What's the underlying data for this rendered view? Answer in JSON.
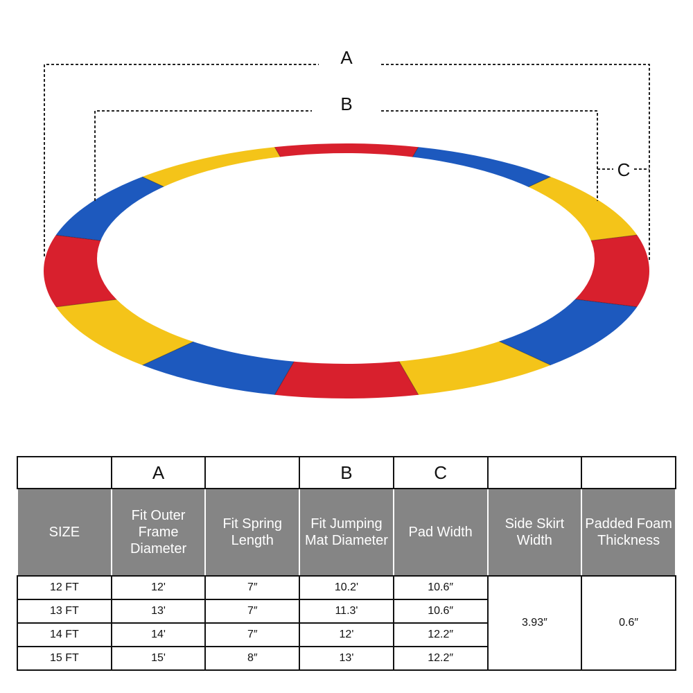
{
  "diagram": {
    "labels": [
      "A",
      "B",
      "C"
    ]
  },
  "table": {
    "letters": [
      "A",
      "B",
      "C"
    ],
    "headers": [
      "SIZE",
      "Fit Outer Frame Diameter",
      "Fit Spring Length",
      "Fit Jumping Mat Diameter",
      "Pad Width",
      "Side Skirt Width",
      "Padded Foam Thickness"
    ],
    "rows": [
      [
        "12 FT",
        "12'",
        "7″",
        "10.2'",
        "10.6″"
      ],
      [
        "13 FT",
        "13'",
        "7″",
        "11.3'",
        "10.6″"
      ],
      [
        "14 FT",
        "14'",
        "7″",
        "12'",
        "12.2″"
      ],
      [
        "15 FT",
        "15'",
        "8″",
        "13'",
        "12.2″"
      ]
    ],
    "shared": [
      "3.93″",
      "0.6″"
    ]
  }
}
